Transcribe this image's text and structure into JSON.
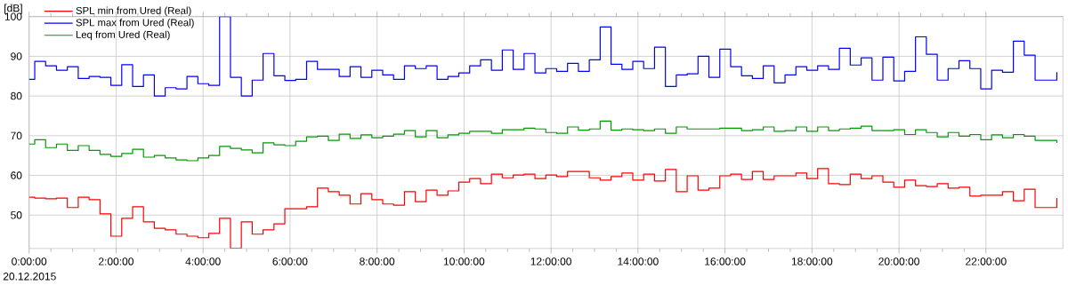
{
  "chart_data": {
    "type": "step",
    "ylabel": "[dB]",
    "annotations": [
      "20.12.2015"
    ],
    "x": [
      0,
      0.13,
      0.38,
      0.63,
      0.88,
      1.13,
      1.38,
      1.63,
      1.88,
      2.13,
      2.38,
      2.63,
      2.88,
      3.13,
      3.38,
      3.63,
      3.88,
      4.13,
      4.38,
      4.63,
      4.88,
      5.13,
      5.38,
      5.63,
      5.88,
      6.13,
      6.38,
      6.63,
      6.88,
      7.13,
      7.38,
      7.63,
      7.88,
      8.13,
      8.38,
      8.63,
      8.88,
      9.13,
      9.38,
      9.63,
      9.88,
      10.13,
      10.38,
      10.63,
      10.88,
      11.13,
      11.38,
      11.63,
      11.88,
      12.13,
      12.38,
      12.63,
      12.88,
      13.13,
      13.38,
      13.63,
      13.88,
      14.13,
      14.38,
      14.63,
      14.88,
      15.13,
      15.38,
      15.63,
      15.88,
      16.13,
      16.38,
      16.63,
      16.88,
      17.13,
      17.38,
      17.63,
      17.88,
      18.13,
      18.38,
      18.63,
      18.88,
      19.13,
      19.38,
      19.63,
      19.88,
      20.13,
      20.38,
      20.63,
      20.88,
      21.13,
      21.38,
      21.63,
      21.88,
      22.13,
      22.38,
      22.63,
      22.88,
      23.13,
      23.38,
      23.63
    ],
    "series": [
      {
        "name": "SPL min from Ured (Real)",
        "color": "#ff0000",
        "values": [
          54.5,
          54.3,
          54.1,
          54.3,
          51.9,
          54.5,
          53.9,
          50.3,
          44.7,
          49.2,
          52.1,
          48.3,
          46.7,
          46.3,
          45.2,
          44.7,
          44.3,
          45.4,
          49.2,
          41.6,
          48.3,
          45.2,
          46.3,
          47.8,
          51.6,
          51.6,
          52.1,
          56.8,
          55.9,
          55.0,
          52.8,
          55.4,
          53.9,
          52.8,
          52.5,
          55.9,
          53.4,
          56.3,
          55.0,
          56.1,
          58.3,
          59.2,
          57.9,
          60.3,
          59.4,
          60.1,
          60.3,
          59.2,
          60.1,
          59.7,
          61.0,
          61.0,
          59.4,
          58.8,
          59.7,
          60.6,
          58.8,
          60.3,
          58.6,
          61.5,
          55.9,
          59.9,
          56.3,
          56.8,
          59.9,
          60.3,
          59.0,
          61.0,
          59.0,
          59.9,
          59.9,
          60.6,
          59.2,
          61.7,
          57.9,
          57.7,
          60.3,
          59.2,
          59.9,
          58.3,
          57.0,
          58.8,
          57.4,
          57.2,
          57.9,
          56.8,
          57.0,
          54.8,
          55.0,
          55.0,
          55.9,
          53.6,
          56.5,
          51.9,
          51.9,
          54.3
        ]
      },
      {
        "name": "SPL max from Ured (Real)",
        "color": "#0000ff",
        "values": [
          84.2,
          88.7,
          87.6,
          86.5,
          87.4,
          84.4,
          84.9,
          84.7,
          82.7,
          87.9,
          82.4,
          85.3,
          80.0,
          82.1,
          81.8,
          84.9,
          83.1,
          82.7,
          100,
          84.7,
          80.0,
          84.0,
          90.7,
          85.1,
          83.9,
          84.2,
          88.7,
          86.7,
          86.7,
          84.9,
          87.4,
          84.7,
          86.5,
          85.3,
          84.2,
          87.6,
          86.9,
          87.6,
          84.2,
          84.9,
          85.8,
          87.6,
          89.1,
          86.5,
          91.6,
          86.7,
          90.7,
          85.8,
          86.9,
          86.2,
          88.2,
          86.2,
          89.1,
          97.4,
          88.0,
          86.7,
          88.7,
          86.9,
          92.3,
          82.4,
          85.3,
          85.6,
          90.0,
          84.7,
          91.8,
          87.4,
          85.1,
          84.4,
          87.6,
          83.3,
          85.3,
          87.4,
          86.5,
          87.6,
          86.7,
          92.0,
          87.8,
          89.6,
          84.0,
          89.8,
          83.8,
          86.2,
          94.9,
          90.5,
          84.0,
          86.9,
          88.9,
          86.9,
          81.8,
          86.5,
          86.0,
          93.8,
          90.3,
          84.0,
          84.0,
          86.0
        ]
      },
      {
        "name": "Leq from Ured (Real)",
        "color": "#009900",
        "values": [
          67.9,
          69.0,
          67.0,
          67.9,
          66.3,
          67.5,
          66.3,
          65.3,
          64.8,
          65.5,
          66.6,
          64.6,
          65.0,
          64.4,
          63.9,
          63.7,
          64.4,
          65.0,
          67.3,
          66.8,
          66.4,
          65.7,
          68.2,
          67.7,
          67.5,
          68.6,
          69.7,
          69.9,
          68.8,
          70.4,
          69.3,
          70.2,
          69.5,
          69.9,
          70.4,
          71.3,
          69.7,
          71.3,
          69.5,
          70.2,
          70.6,
          71.1,
          71.1,
          70.6,
          71.5,
          71.5,
          71.9,
          71.7,
          70.8,
          70.6,
          72.2,
          71.4,
          71.7,
          73.7,
          71.4,
          71.7,
          71.5,
          71.3,
          71.7,
          70.6,
          72.2,
          71.7,
          71.7,
          71.7,
          71.9,
          71.9,
          71.3,
          71.5,
          72.2,
          71.1,
          71.3,
          72.2,
          71.1,
          72.2,
          71.3,
          71.7,
          71.9,
          72.4,
          71.3,
          71.3,
          71.5,
          70.3,
          71.5,
          70.8,
          69.7,
          70.8,
          69.9,
          70.3,
          69.0,
          70.2,
          69.5,
          70.3,
          69.9,
          68.8,
          68.8,
          68.2
        ]
      }
    ],
    "xlim": [
      0,
      23.77
    ],
    "ylim": [
      41.6,
      100
    ],
    "xticks": [
      {
        "value": 0,
        "label": "0:00:00"
      },
      {
        "value": 2,
        "label": "2:00:00"
      },
      {
        "value": 4,
        "label": "4:00:00"
      },
      {
        "value": 6,
        "label": "6:00:00"
      },
      {
        "value": 8,
        "label": "8:00:00"
      },
      {
        "value": 10,
        "label": "10:00:00"
      },
      {
        "value": 12,
        "label": "12:00:00"
      },
      {
        "value": 14,
        "label": "14:00:00"
      },
      {
        "value": 16,
        "label": "16:00:00"
      },
      {
        "value": 18,
        "label": "18:00:00"
      },
      {
        "value": 20,
        "label": "20:00:00"
      },
      {
        "value": 22,
        "label": "22:00:00"
      }
    ],
    "yticks": [
      50,
      60,
      70,
      80,
      90,
      100
    ],
    "grid": true,
    "legend": "top left"
  }
}
